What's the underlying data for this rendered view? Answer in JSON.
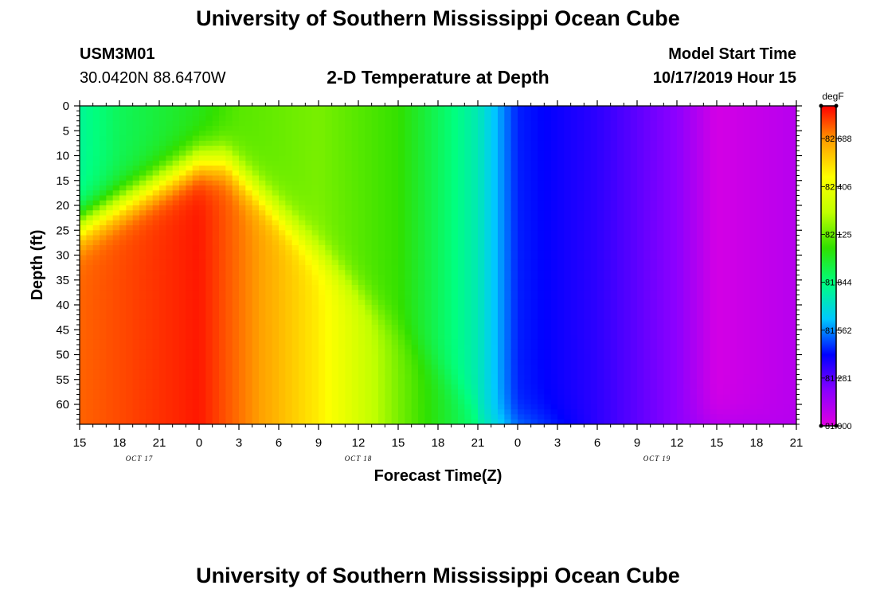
{
  "header": {
    "title": "University of Southern Mississippi Ocean Cube",
    "station_id": "USM3M01",
    "coordinates": "30.0420N 88.6470W",
    "plot_title": "2-D Temperature at Depth",
    "model_start_label": "Model Start Time",
    "model_start_value": "10/17/2019 Hour 15"
  },
  "footer": {
    "title": "University of Southern Mississippi Ocean Cube"
  },
  "chart_data": {
    "type": "heatmap",
    "title": "2-D Temperature at Depth",
    "xlabel": "Forecast Time(Z)",
    "ylabel": "Depth (ft)",
    "x_tick_labels": [
      "15",
      "18",
      "21",
      "0",
      "3",
      "6",
      "9",
      "12",
      "15",
      "18",
      "21",
      "0",
      "3",
      "6",
      "9",
      "12",
      "15",
      "18",
      "21"
    ],
    "date_labels": [
      {
        "label": "OCT 17",
        "tick_index": 1.5
      },
      {
        "label": "OCT 18",
        "tick_index": 7
      },
      {
        "label": "OCT 19",
        "tick_index": 14.5
      }
    ],
    "x_range_hours": [
      0,
      54
    ],
    "y_tick_labels": [
      "0",
      "5",
      "10",
      "15",
      "20",
      "25",
      "30",
      "35",
      "40",
      "45",
      "50",
      "55",
      "60"
    ],
    "ylim": [
      0,
      64
    ],
    "y_inverted": true,
    "colorbar": {
      "unit": "degF",
      "tick_labels": [
        "82.688",
        "82.406",
        "82.125",
        "81.844",
        "81.562",
        "81.281",
        "81.000"
      ],
      "min": 81.0,
      "max": 82.88,
      "colors": [
        "#e000e0",
        "#8a00ff",
        "#0000ff",
        "#00c8ff",
        "#00ff80",
        "#30e000",
        "#c0ff00",
        "#ffff00",
        "#ffa000",
        "#ff0000"
      ]
    },
    "surface_temperature_series": [
      {
        "hour": 0,
        "degF": 81.8
      },
      {
        "hour": 3,
        "degF": 81.9
      },
      {
        "hour": 9,
        "degF": 82.0
      },
      {
        "hour": 12,
        "degF": 82.1
      },
      {
        "hour": 18,
        "degF": 82.15
      },
      {
        "hour": 24,
        "degF": 82.05
      },
      {
        "hour": 30,
        "degF": 81.75
      },
      {
        "hour": 33,
        "degF": 81.45
      },
      {
        "hour": 39,
        "degF": 81.35
      },
      {
        "hour": 45,
        "degF": 81.2
      },
      {
        "hour": 48,
        "degF": 81.03
      },
      {
        "hour": 54,
        "degF": 81.1
      }
    ],
    "bottom_temperature_series": [
      {
        "hour": 0,
        "degF": 82.75
      },
      {
        "hour": 9,
        "degF": 82.85
      },
      {
        "hour": 18,
        "degF": 82.5
      },
      {
        "hour": 24,
        "degF": 82.15
      },
      {
        "hour": 30,
        "degF": 81.85
      },
      {
        "hour": 33,
        "degF": 81.6
      },
      {
        "hour": 39,
        "degF": 81.35
      },
      {
        "hour": 45,
        "degF": 81.2
      },
      {
        "hour": 54,
        "degF": 81.1
      }
    ]
  }
}
